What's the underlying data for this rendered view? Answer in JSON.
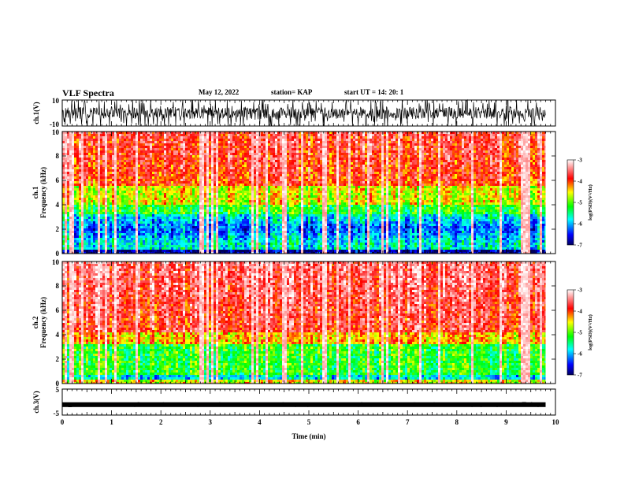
{
  "header": {
    "title": "VLF Spectra",
    "date": "May 12, 2022",
    "station": "station= KAP",
    "start": "start  UT =   14: 20: 1"
  },
  "chart_data": [
    {
      "type": "line",
      "panel": "ch1-waveform",
      "ylabel": "ch.1(V)",
      "ylim": [
        -10,
        10
      ],
      "yticks": [
        "10",
        "-10"
      ],
      "x_range": [
        0,
        10
      ],
      "description": "noisy waveform clipped at full scale"
    },
    {
      "type": "heatmap",
      "panel": "ch1-spectrogram",
      "ylabel_top": "ch.1",
      "ylabel": "Frequency (kHz)",
      "ylim": [
        0,
        10
      ],
      "yticks": [
        "0",
        "2",
        "4",
        "6",
        "8",
        "10"
      ],
      "x_range": [
        0,
        9.8
      ],
      "colorbar": {
        "label": "log(PSD)(V²/Hz)",
        "range": [
          -7,
          -3
        ],
        "ticks": [
          "-3",
          "-4",
          "-5",
          "-6",
          "-7"
        ]
      }
    },
    {
      "type": "heatmap",
      "panel": "ch2-spectrogram",
      "ylabel_top": "ch.2",
      "ylabel": "Frequency (kHz)",
      "ylim": [
        0,
        10
      ],
      "yticks": [
        "0",
        "2",
        "4",
        "6",
        "8",
        "10"
      ],
      "x_range": [
        0,
        9.8
      ],
      "colorbar": {
        "label": "log(PSD)(V²/Hz)",
        "range": [
          -7,
          -3
        ],
        "ticks": [
          "-3",
          "-4",
          "-5",
          "-6",
          "-7"
        ]
      }
    },
    {
      "type": "line",
      "panel": "ch3-waveform",
      "ylabel": "ch.3(V)",
      "ylim": [
        -5,
        5
      ],
      "yticks": [
        "5",
        "-5"
      ],
      "x_range": [
        0,
        10
      ],
      "description": "nearly constant level slightly below zero"
    }
  ],
  "xaxis": {
    "label": "Time  (min)",
    "ticks": [
      "0",
      "1",
      "2",
      "3",
      "4",
      "5",
      "6",
      "7",
      "8",
      "9",
      "10"
    ],
    "range": [
      0,
      10
    ]
  }
}
